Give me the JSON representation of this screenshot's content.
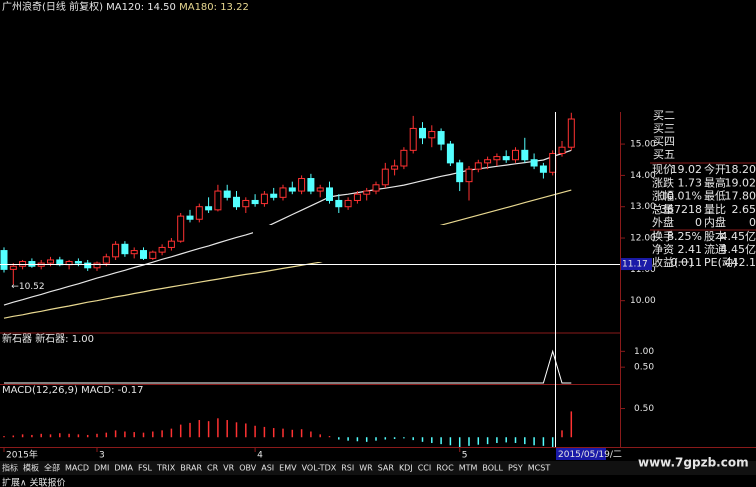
{
  "chart_data": [
    {
      "type": "candlestick",
      "title": "广州浪奇(日线 前复权)",
      "up_color": "#ff3232",
      "down_color": "#54ffff",
      "categories": [
        "2015年",
        null,
        null,
        null,
        null,
        null,
        null,
        null,
        null,
        null,
        "3",
        null,
        null,
        null,
        null,
        null,
        null,
        null,
        null,
        null,
        null,
        null,
        null,
        null,
        null,
        null,
        null,
        "4",
        null,
        null,
        null,
        null,
        null,
        null,
        null,
        null,
        null,
        null,
        null,
        null,
        null,
        null,
        null,
        null,
        null,
        null,
        null,
        null,
        null,
        "5",
        null,
        null,
        null,
        null,
        null,
        null,
        null,
        null,
        null,
        null,
        null,
        null
      ],
      "open": [
        11.6,
        11.0,
        11.1,
        11.25,
        11.1,
        11.2,
        11.3,
        11.15,
        11.25,
        11.2,
        11.05,
        11.2,
        11.4,
        11.8,
        11.5,
        11.6,
        11.35,
        11.55,
        11.7,
        11.9,
        12.7,
        12.6,
        13.0,
        12.9,
        13.5,
        13.3,
        13.0,
        13.2,
        13.1,
        13.4,
        13.3,
        13.6,
        13.5,
        13.9,
        13.5,
        13.6,
        13.2,
        13.0,
        13.2,
        13.4,
        13.5,
        13.7,
        14.2,
        14.3,
        14.8,
        15.5,
        15.2,
        15.4,
        15.0,
        14.4,
        13.8,
        14.2,
        14.4,
        14.5,
        14.6,
        14.5,
        14.8,
        14.5,
        14.3,
        14.1,
        14.7,
        14.9
      ],
      "high": [
        11.7,
        11.2,
        11.3,
        11.35,
        11.3,
        11.4,
        11.4,
        11.3,
        11.35,
        11.3,
        11.25,
        11.5,
        11.9,
        11.9,
        11.7,
        11.7,
        11.6,
        11.8,
        12.0,
        12.8,
        12.9,
        13.1,
        13.3,
        13.7,
        13.7,
        13.5,
        13.3,
        13.4,
        13.5,
        13.6,
        13.7,
        13.8,
        14.0,
        14.05,
        13.7,
        13.8,
        13.4,
        13.3,
        13.5,
        13.6,
        13.8,
        14.4,
        14.5,
        14.9,
        15.9,
        15.7,
        15.6,
        15.5,
        15.1,
        14.5,
        14.3,
        14.5,
        14.6,
        14.7,
        14.8,
        14.9,
        15.2,
        14.7,
        14.4,
        14.8,
        15.1,
        16.0
      ],
      "low": [
        10.9,
        10.52,
        11.0,
        11.05,
        11.0,
        11.1,
        11.1,
        11.0,
        11.1,
        10.95,
        10.95,
        11.1,
        11.3,
        11.4,
        11.35,
        11.3,
        11.3,
        11.45,
        11.6,
        11.85,
        12.5,
        12.5,
        12.8,
        12.85,
        13.2,
        12.9,
        12.8,
        13.0,
        13.0,
        13.2,
        13.2,
        13.4,
        13.4,
        13.4,
        13.3,
        13.1,
        12.8,
        12.9,
        13.1,
        13.2,
        13.4,
        13.6,
        14.0,
        14.2,
        14.7,
        15.0,
        14.9,
        14.8,
        14.3,
        13.5,
        13.2,
        14.1,
        14.2,
        14.3,
        14.4,
        14.4,
        14.4,
        14.2,
        13.9,
        14.0,
        14.6,
        14.8
      ],
      "close": [
        11.0,
        11.1,
        11.25,
        11.1,
        11.2,
        11.3,
        11.15,
        11.25,
        11.2,
        11.05,
        11.2,
        11.4,
        11.8,
        11.5,
        11.6,
        11.35,
        11.55,
        11.7,
        11.9,
        12.7,
        12.6,
        13.0,
        12.9,
        13.5,
        13.3,
        13.0,
        13.2,
        13.1,
        13.4,
        13.3,
        13.6,
        13.5,
        13.9,
        13.5,
        13.6,
        13.2,
        13.0,
        13.2,
        13.4,
        13.5,
        13.7,
        14.2,
        14.3,
        14.8,
        15.5,
        15.2,
        15.4,
        15.0,
        14.4,
        13.8,
        14.2,
        14.4,
        14.5,
        14.6,
        14.5,
        14.8,
        14.5,
        14.3,
        14.1,
        14.7,
        14.9,
        15.8
      ],
      "low_label": "←10.52",
      "series": [
        {
          "name": "MA120: 14.50",
          "color": "#e6e6e6",
          "values": [
            9.86,
            9.95,
            10.03,
            10.12,
            10.2,
            10.29,
            10.37,
            10.46,
            10.54,
            10.63,
            10.72,
            10.8,
            10.89,
            10.97,
            11.06,
            11.14,
            11.23,
            11.32,
            11.4,
            11.49,
            11.58,
            11.67,
            11.75,
            11.84,
            11.93,
            12.02,
            12.1,
            12.19,
            12.33,
            12.47,
            12.61,
            12.75,
            12.89,
            13.03,
            13.17,
            13.31,
            13.36,
            13.4,
            13.45,
            13.5,
            13.55,
            13.59,
            13.64,
            13.69,
            13.76,
            13.83,
            13.9,
            13.97,
            14.03,
            14.1,
            14.17,
            14.21,
            14.25,
            14.29,
            14.33,
            14.37,
            14.41,
            14.45,
            14.49,
            14.6,
            14.7,
            14.8
          ]
        },
        {
          "name": "MA180: 13.22",
          "color": "#e8d890",
          "values": [
            9.44,
            9.5,
            9.55,
            9.61,
            9.66,
            9.72,
            9.78,
            9.83,
            9.89,
            9.95,
            10.0,
            10.06,
            10.12,
            10.17,
            10.23,
            10.28,
            10.34,
            10.39,
            10.44,
            10.49,
            10.54,
            10.59,
            10.64,
            10.69,
            10.74,
            10.79,
            10.84,
            10.88,
            10.93,
            10.98,
            11.03,
            11.08,
            11.13,
            11.18,
            11.23,
            11.32,
            11.41,
            11.5,
            11.59,
            11.68,
            11.77,
            11.86,
            11.95,
            12.05,
            12.14,
            12.23,
            12.32,
            12.41,
            12.49,
            12.57,
            12.65,
            12.73,
            12.81,
            12.89,
            12.97,
            13.05,
            13.13,
            13.21,
            13.29,
            13.37,
            13.45,
            13.53
          ]
        }
      ],
      "ylim": [
        9.0,
        19.6
      ],
      "yticks": [
        {
          "value": 15,
          "label": "15.00"
        },
        {
          "value": 14,
          "label": "14.00"
        },
        {
          "value": 13,
          "label": "13.00"
        },
        {
          "value": 12,
          "label": "12.00"
        },
        {
          "value": 11,
          "label": "11.00"
        },
        {
          "value": 10,
          "label": "10.00"
        }
      ],
      "crosshair": {
        "price": {
          "value": 11.17,
          "label": "11.17"
        },
        "date": "2015/05/19/二"
      }
    },
    {
      "type": "line",
      "title": "新石器",
      "series": [
        {
          "name": "新石器: 1.00",
          "color": "#ffffff",
          "values": [
            0,
            0,
            0,
            0,
            0,
            0,
            0,
            0,
            0,
            0,
            0,
            0,
            0,
            0,
            0,
            0,
            0,
            0,
            0,
            0,
            0,
            0,
            0,
            0,
            0,
            0,
            0,
            0,
            0,
            0,
            0,
            0,
            0,
            0,
            0,
            0,
            0,
            0,
            0,
            0,
            0,
            0,
            0,
            0,
            0,
            0,
            0,
            0,
            0,
            0,
            0,
            0,
            0,
            0,
            0,
            0,
            0,
            0,
            0,
            1,
            0,
            0
          ]
        }
      ],
      "ylim": [
        0,
        1.2
      ],
      "yticks": [
        {
          "value": 1,
          "label": "1.00"
        },
        {
          "value": 0.5,
          "label": "0.50"
        }
      ]
    },
    {
      "type": "bar",
      "title": "MACD(12,26,9) MACD: -0.17",
      "up_color": "#ff3232",
      "down_color": "#54ffff",
      "values": [
        0.02,
        0.03,
        0.05,
        0.04,
        0.06,
        0.05,
        0.07,
        0.06,
        0.05,
        0.04,
        0.06,
        0.08,
        0.12,
        0.1,
        0.09,
        0.08,
        0.1,
        0.12,
        0.15,
        0.22,
        0.25,
        0.3,
        0.28,
        0.33,
        0.3,
        0.26,
        0.24,
        0.2,
        0.18,
        0.16,
        0.15,
        0.13,
        0.14,
        0.1,
        0.05,
        0.02,
        -0.04,
        -0.06,
        -0.07,
        -0.08,
        -0.06,
        -0.04,
        -0.03,
        -0.02,
        -0.05,
        -0.08,
        -0.1,
        -0.12,
        -0.14,
        -0.17,
        -0.15,
        -0.13,
        -0.12,
        -0.1,
        -0.09,
        -0.1,
        -0.12,
        -0.14,
        -0.15,
        -0.17,
        0.12,
        0.45
      ],
      "ylim": [
        -0.17,
        0.91
      ],
      "yticks": [
        {
          "value": 0.5,
          "label": "0.50"
        }
      ]
    }
  ],
  "quote": {
    "bids": [
      "买二",
      "买三",
      "买四",
      "买五"
    ],
    "rows": [
      [
        "现价",
        "19.02",
        "今开",
        "18.20"
      ],
      [
        "涨跌",
        "1.73",
        "最高",
        "19.02"
      ],
      [
        "涨幅",
        "10.01%",
        "最低",
        "17.80"
      ],
      [
        "总量",
        "367218",
        "量比",
        "2.65"
      ],
      [
        "外盘",
        "0",
        "内盘",
        "0"
      ],
      [
        "换手",
        "8.25%",
        "股本",
        "4.45亿"
      ],
      [
        "净资",
        "2.41",
        "流通",
        "4.45亿"
      ],
      [
        "收益(一)",
        "0.011",
        "PE(动)",
        "442.1"
      ]
    ],
    "row_colors": [
      "#ff3232",
      "#ff3232",
      "#ff3232",
      "#ffff40",
      "#ff3232",
      "#e6e6e6",
      "#e6e6e6",
      "#e6e6e6"
    ]
  },
  "tabs": [
    "指标",
    "模板",
    "全部",
    "MACD",
    "DMI",
    "DMA",
    "FSL",
    "TRIX",
    "BRAR",
    "CR",
    "VR",
    "OBV",
    "ASI",
    "EMV",
    "VOL-TDX",
    "RSI",
    "WR",
    "SAR",
    "KDJ",
    "CCI",
    "ROC",
    "MTM",
    "BOLL",
    "PSY",
    "MCST"
  ],
  "footer": "扩展∧ 关联报价",
  "watermark": "www.7gpzb.com"
}
